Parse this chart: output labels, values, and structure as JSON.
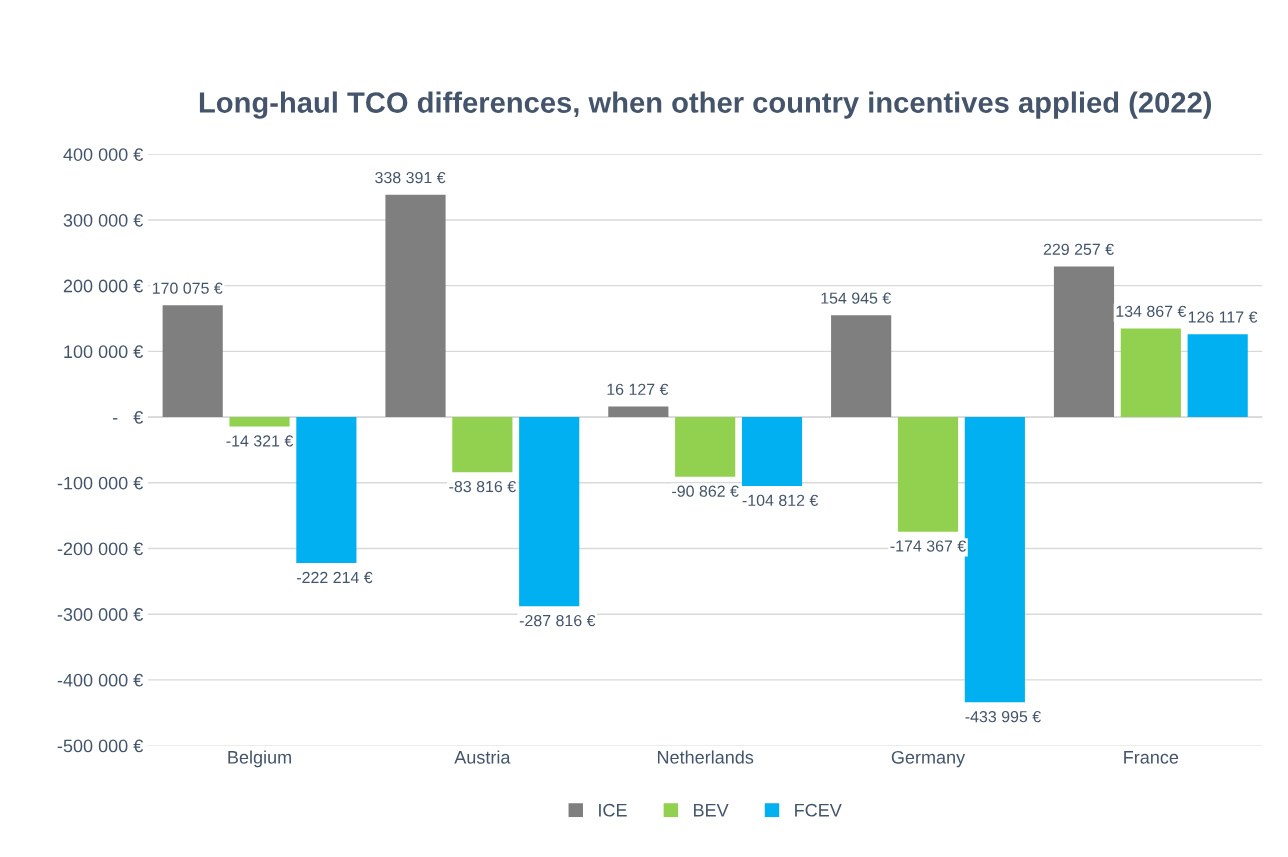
{
  "chart_data": {
    "type": "bar",
    "title": "Long-haul TCO differences, when other country incentives applied (2022)",
    "categories": [
      "Belgium",
      "Austria",
      "Netherlands",
      "Germany",
      "France"
    ],
    "series": [
      {
        "name": "ICE",
        "color": "#7f7f7f",
        "values": [
          170075,
          338391,
          16127,
          154945,
          229257
        ],
        "value_labels": [
          "170 075 €",
          "338 391 €",
          "16 127 €",
          "154 945 €",
          "229 257 €"
        ]
      },
      {
        "name": "BEV",
        "color": "#92d050",
        "values": [
          -14321,
          -83816,
          -90862,
          -174367,
          134867
        ],
        "value_labels": [
          "-14 321 €",
          "-83 816 €",
          "-90 862 €",
          "-174 367 €",
          "134 867 €"
        ]
      },
      {
        "name": "FCEV",
        "color": "#00b0f0",
        "values": [
          -222214,
          -287816,
          -104812,
          -433995,
          126117
        ],
        "value_labels": [
          "-222 214 €",
          "-287 816 €",
          "-104 812 €",
          "-433 995 €",
          "126 117 €"
        ]
      }
    ],
    "ylim": [
      -500000,
      400000
    ],
    "yticks": [
      {
        "value": 400000,
        "label": "400 000 €"
      },
      {
        "value": 300000,
        "label": "300 000 €"
      },
      {
        "value": 200000,
        "label": "200 000 €"
      },
      {
        "value": 100000,
        "label": "100 000 €"
      },
      {
        "value": 0,
        "label": "-   €"
      },
      {
        "value": -100000,
        "label": "-100 000 €"
      },
      {
        "value": -200000,
        "label": "-200 000 €"
      },
      {
        "value": -300000,
        "label": "-300 000 €"
      },
      {
        "value": -400000,
        "label": "-400 000 €"
      },
      {
        "value": -500000,
        "label": "-500 000 €"
      }
    ],
    "grid": "y",
    "legend": "bottom"
  }
}
